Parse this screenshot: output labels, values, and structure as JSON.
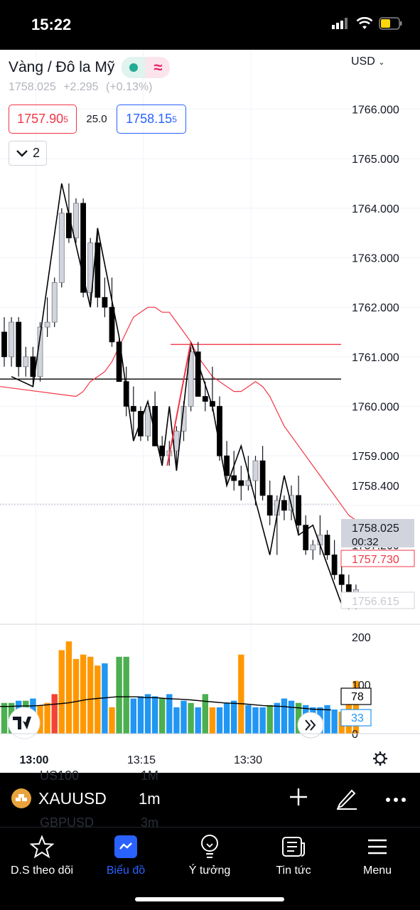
{
  "status_bar": {
    "time": "15:22"
  },
  "header": {
    "symbol_title": "Vàng / Đô la Mỹ",
    "last_price": "1758.025",
    "change": "+2.295",
    "change_percent": "(+0.13%)",
    "sell_price_main": "1757.90",
    "sell_price_sup": "5",
    "spread": "25.0",
    "buy_price_main": "1758.15",
    "buy_price_sup": "5",
    "indicator_count": "2",
    "currency": "USD"
  },
  "chart_data": {
    "type": "candlestick",
    "price_axis_labels": [
      "1766.000",
      "1765.000",
      "1764.000",
      "1763.000",
      "1762.000",
      "1761.000",
      "1760.000",
      "1759.000",
      "1758.400",
      "1757.200"
    ],
    "price_range": [
      1755.6,
      1767.2
    ],
    "time_labels": [
      "13:00",
      "13:15",
      "13:30"
    ],
    "current_price_label": "1758.025",
    "countdown": "00:32",
    "ma_label": "1757.730",
    "ghost_label": "1756.615",
    "volume_axis_labels": [
      "200",
      "100",
      "0"
    ],
    "volume_ma_label": "78",
    "volume_label": "33",
    "horizontal_lines": [
      {
        "price": 1761.25,
        "color": "#f23645"
      },
      {
        "price": 1760.55,
        "color": "#000000"
      }
    ],
    "candles": [
      [
        1761.5,
        1761.8,
        1760.8,
        1761.0
      ],
      [
        1761.0,
        1761.8,
        1760.8,
        1761.7
      ],
      [
        1761.7,
        1761.8,
        1760.6,
        1760.8
      ],
      [
        1760.8,
        1761.2,
        1760.6,
        1761.0
      ],
      [
        1761.0,
        1761.2,
        1760.4,
        1760.6
      ],
      [
        1760.6,
        1761.7,
        1760.5,
        1761.6
      ],
      [
        1761.6,
        1762.2,
        1761.4,
        1761.7
      ],
      [
        1761.7,
        1762.6,
        1761.6,
        1762.5
      ],
      [
        1762.5,
        1764.0,
        1762.4,
        1763.9
      ],
      [
        1763.9,
        1764.5,
        1763.3,
        1763.4
      ],
      [
        1763.4,
        1764.2,
        1763.3,
        1764.1
      ],
      [
        1764.1,
        1764.2,
        1762.2,
        1762.3
      ],
      [
        1762.3,
        1763.4,
        1762.0,
        1763.3
      ],
      [
        1763.3,
        1763.6,
        1762.0,
        1762.2
      ],
      [
        1762.2,
        1762.6,
        1761.8,
        1762.0
      ],
      [
        1762.0,
        1762.6,
        1761.2,
        1761.3
      ],
      [
        1761.3,
        1761.4,
        1760.5,
        1760.5
      ],
      [
        1760.5,
        1760.8,
        1759.8,
        1760.0
      ],
      [
        1760.0,
        1760.4,
        1759.3,
        1759.9
      ],
      [
        1759.9,
        1760.0,
        1759.3,
        1759.4
      ],
      [
        1759.4,
        1760.0,
        1759.3,
        1760.0
      ],
      [
        1760.0,
        1760.3,
        1759.2,
        1759.2
      ],
      [
        1759.2,
        1759.4,
        1758.9,
        1759.0
      ],
      [
        1759.0,
        1759.3,
        1758.8,
        1759.1
      ],
      [
        1759.1,
        1759.6,
        1758.8,
        1759.5
      ],
      [
        1759.5,
        1760.1,
        1759.3,
        1760.0
      ],
      [
        1760.0,
        1761.2,
        1759.9,
        1761.1
      ],
      [
        1761.1,
        1761.3,
        1760.2,
        1760.2
      ],
      [
        1760.2,
        1760.5,
        1759.9,
        1760.1
      ],
      [
        1760.1,
        1760.8,
        1759.9,
        1760.0
      ],
      [
        1760.0,
        1760.2,
        1758.9,
        1759.0
      ],
      [
        1759.0,
        1759.3,
        1758.4,
        1758.6
      ],
      [
        1758.6,
        1759.1,
        1758.3,
        1758.5
      ],
      [
        1758.5,
        1758.8,
        1758.1,
        1758.4
      ],
      [
        1758.4,
        1759.0,
        1758.3,
        1758.5
      ],
      [
        1758.5,
        1759.0,
        1758.0,
        1758.9
      ],
      [
        1758.9,
        1759.2,
        1758.1,
        1758.2
      ],
      [
        1758.2,
        1758.5,
        1757.6,
        1757.8
      ],
      [
        1757.8,
        1758.2,
        1757.0,
        1758.1
      ],
      [
        1758.1,
        1758.2,
        1757.7,
        1757.9
      ],
      [
        1757.9,
        1758.4,
        1757.7,
        1758.2
      ],
      [
        1758.2,
        1758.6,
        1757.4,
        1757.6
      ],
      [
        1757.6,
        1757.8,
        1757.0,
        1757.1
      ],
      [
        1757.1,
        1757.3,
        1756.9,
        1757.2
      ],
      [
        1757.2,
        1757.8,
        1757.0,
        1757.4
      ],
      [
        1757.4,
        1757.5,
        1756.9,
        1757.0
      ],
      [
        1757.0,
        1757.3,
        1756.5,
        1756.6
      ],
      [
        1756.6,
        1756.9,
        1756.2,
        1756.4
      ],
      [
        1756.4,
        1756.6,
        1755.9,
        1756.0
      ],
      [
        1756.0,
        1756.4,
        1755.9,
        1756.3
      ]
    ],
    "moving_average": [
      1760.2,
      1760.3,
      1760.5,
      1760.6,
      1760.7,
      1760.9,
      1761.2,
      1761.5,
      1761.8,
      1761.9,
      1762.0,
      1762.0,
      1761.9,
      1761.9,
      1761.7,
      1761.5,
      1761.3,
      1761.0,
      1760.8,
      1760.6,
      1760.5,
      1760.4,
      1760.3,
      1760.3,
      1760.4,
      1760.5,
      1760.4,
      1760.2,
      1759.9,
      1759.6,
      1759.4,
      1759.2,
      1759.0,
      1758.8,
      1758.6,
      1758.4,
      1758.2,
      1758.0,
      1757.8,
      1757.7
    ],
    "zigzag": [
      [
        1,
        1760.6
      ],
      [
        4,
        1760.4
      ],
      [
        8,
        1764.5
      ],
      [
        12,
        1762.0
      ],
      [
        13,
        1763.6
      ],
      [
        16,
        1761.4
      ],
      [
        18,
        1759.3
      ],
      [
        20,
        1760.1
      ],
      [
        22,
        1758.8
      ],
      [
        23,
        1760.0
      ],
      [
        24,
        1758.7
      ],
      [
        26,
        1761.3
      ],
      [
        29,
        1760.0
      ],
      [
        31,
        1758.4
      ],
      [
        33,
        1759.2
      ],
      [
        35,
        1758.1
      ],
      [
        37,
        1757.0
      ],
      [
        39,
        1758.6
      ],
      [
        41,
        1757.4
      ],
      [
        43,
        1757.6
      ],
      [
        47,
        1756.0
      ]
    ],
    "volumes": [
      70,
      70,
      75,
      75,
      80,
      65,
      70,
      90,
      190,
      210,
      170,
      180,
      175,
      155,
      160,
      60,
      175,
      175,
      80,
      85,
      90,
      85,
      80,
      90,
      60,
      75,
      70,
      60,
      90,
      60,
      60,
      70,
      75,
      180,
      65,
      60,
      60,
      65,
      70,
      80,
      75,
      70,
      65,
      60,
      60,
      65,
      55,
      50,
      75,
      120
    ],
    "volume_colors": [
      "g",
      "g",
      "b",
      "g",
      "b",
      "o",
      "o",
      "r",
      "o",
      "o",
      "o",
      "o",
      "o",
      "o",
      "b",
      "o",
      "g",
      "g",
      "b",
      "b",
      "b",
      "b",
      "g",
      "b",
      "b",
      "b",
      "g",
      "b",
      "g",
      "o",
      "b",
      "b",
      "b",
      "o",
      "b",
      "b",
      "b",
      "g",
      "b",
      "b",
      "b",
      "g",
      "b",
      "b",
      "b",
      "b",
      "b",
      "o",
      "o",
      "o"
    ],
    "volume_ma": [
      62,
      62,
      63,
      63,
      64,
      66,
      68,
      70,
      74,
      78,
      80,
      82,
      84,
      84,
      84,
      82,
      82,
      80,
      79,
      78,
      76,
      74,
      72,
      70,
      69,
      68,
      66,
      64,
      63,
      62,
      60,
      58,
      56,
      55,
      54
    ],
    "volume_range": [
      0,
      220
    ]
  },
  "toolbar": {
    "symbol": "XAUUSD",
    "interval": "1m",
    "ghost_symbol_1": "US100",
    "ghost_interval_1": "1M",
    "ghost_symbol_2": "GBPUSD",
    "ghost_interval_2": "3m"
  },
  "tabs": [
    {
      "label": "D.S theo dõi"
    },
    {
      "label": "Biểu đồ"
    },
    {
      "label": "Ý tưởng"
    },
    {
      "label": "Tin tức"
    },
    {
      "label": "Menu"
    }
  ]
}
